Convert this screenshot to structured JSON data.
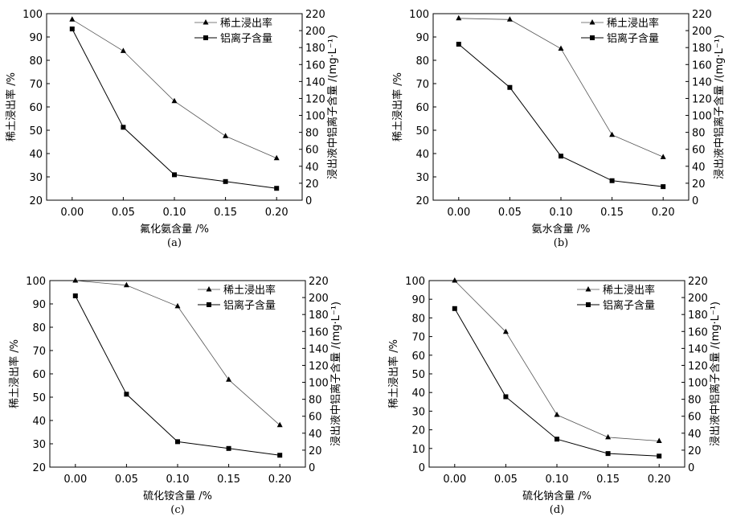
{
  "chart_data": [
    {
      "type": "line",
      "panel_label": "(a)",
      "xlabel": "氟化氨含量 /%",
      "ylabel": "稀土浸出率 /%",
      "y2label": "浸出液中铝离子含量 /(mg·L⁻¹)",
      "x": [
        0.0,
        0.05,
        0.1,
        0.15,
        0.2
      ],
      "x_tick_labels": [
        "0.00",
        "0.05",
        "0.10",
        "0.15",
        "0.20"
      ],
      "xlim": [
        -0.025,
        0.225
      ],
      "ylim": [
        20,
        100
      ],
      "y_ticks": [
        20,
        30,
        40,
        50,
        60,
        70,
        80,
        90,
        100
      ],
      "y2lim": [
        0,
        220
      ],
      "y2_ticks": [
        0,
        20,
        40,
        60,
        80,
        100,
        120,
        140,
        160,
        180,
        200,
        220
      ],
      "legend_position": "top-right",
      "grid": false,
      "series": [
        {
          "name": "稀土浸出率",
          "axis": "left",
          "marker": "triangle",
          "color": "#555555",
          "values": [
            97.5,
            84,
            62.5,
            47.5,
            38
          ]
        },
        {
          "name": "铝离子含量",
          "axis": "right",
          "marker": "square",
          "color": "#000000",
          "values": [
            202,
            86,
            30,
            22,
            14
          ]
        }
      ]
    },
    {
      "type": "line",
      "panel_label": "(b)",
      "xlabel": "氨水含量 /%",
      "ylabel": "稀土浸出率 /%",
      "y2label": "浸出液中铝离子含量 /(mg·L⁻¹)",
      "x": [
        0.0,
        0.05,
        0.1,
        0.15,
        0.2
      ],
      "x_tick_labels": [
        "0.00",
        "0.05",
        "0.10",
        "0.15",
        "0.20"
      ],
      "xlim": [
        -0.025,
        0.225
      ],
      "ylim": [
        20,
        100
      ],
      "y_ticks": [
        20,
        30,
        40,
        50,
        60,
        70,
        80,
        90,
        100
      ],
      "y2lim": [
        0,
        220
      ],
      "y2_ticks": [
        0,
        20,
        40,
        60,
        80,
        100,
        120,
        140,
        160,
        180,
        200,
        220
      ],
      "legend_position": "top-right",
      "grid": false,
      "series": [
        {
          "name": "稀土浸出率",
          "axis": "left",
          "marker": "triangle",
          "color": "#555555",
          "values": [
            98,
            97.5,
            85,
            48,
            38.5
          ]
        },
        {
          "name": "铝离子含量",
          "axis": "right",
          "marker": "square",
          "color": "#000000",
          "values": [
            184,
            133,
            52,
            23,
            16
          ]
        }
      ]
    },
    {
      "type": "line",
      "panel_label": "(c)",
      "xlabel": "硫化铵含量 /%",
      "ylabel": "稀土浸出率 /%",
      "y2label": "浸出液中铝离子含量 /(mg·L⁻¹)",
      "x": [
        0.0,
        0.05,
        0.1,
        0.15,
        0.2
      ],
      "x_tick_labels": [
        "0.00",
        "0.05",
        "0.10",
        "0.15",
        "0.20"
      ],
      "xlim": [
        -0.025,
        0.225
      ],
      "ylim": [
        20,
        100
      ],
      "y_ticks": [
        20,
        30,
        40,
        50,
        60,
        70,
        80,
        90,
        100
      ],
      "y2lim": [
        0,
        220
      ],
      "y2_ticks": [
        0,
        20,
        40,
        60,
        80,
        100,
        120,
        140,
        160,
        180,
        200,
        220
      ],
      "legend_position": "top-right",
      "grid": false,
      "series": [
        {
          "name": "稀土浸出率",
          "axis": "left",
          "marker": "triangle",
          "color": "#555555",
          "values": [
            100,
            98,
            89,
            57.5,
            38
          ]
        },
        {
          "name": "铝离子含量",
          "axis": "right",
          "marker": "square",
          "color": "#000000",
          "values": [
            202,
            86,
            30,
            22,
            14
          ]
        }
      ]
    },
    {
      "type": "line",
      "panel_label": "(d)",
      "xlabel": "硫化钠含量 /%",
      "ylabel": "稀土浸出率 /%",
      "y2label": "浸出液中铝离子含量 /(mg·L⁻¹)",
      "x": [
        0.0,
        0.05,
        0.1,
        0.15,
        0.2
      ],
      "x_tick_labels": [
        "0.00",
        "0.05",
        "0.10",
        "0.15",
        "0.20"
      ],
      "xlim": [
        -0.025,
        0.225
      ],
      "ylim": [
        0,
        100
      ],
      "y_ticks": [
        0,
        10,
        20,
        30,
        40,
        50,
        60,
        70,
        80,
        90,
        100
      ],
      "y2lim": [
        0,
        220
      ],
      "y2_ticks": [
        0,
        20,
        40,
        60,
        80,
        100,
        120,
        140,
        160,
        180,
        200,
        220
      ],
      "legend_position": "top-right",
      "grid": false,
      "series": [
        {
          "name": "稀土浸出率",
          "axis": "left",
          "marker": "triangle",
          "color": "#555555",
          "values": [
            100,
            72.5,
            28,
            16,
            14
          ]
        },
        {
          "name": "铝离子含量",
          "axis": "right",
          "marker": "square",
          "color": "#000000",
          "values": [
            187,
            83,
            33,
            16,
            13
          ]
        }
      ]
    }
  ]
}
